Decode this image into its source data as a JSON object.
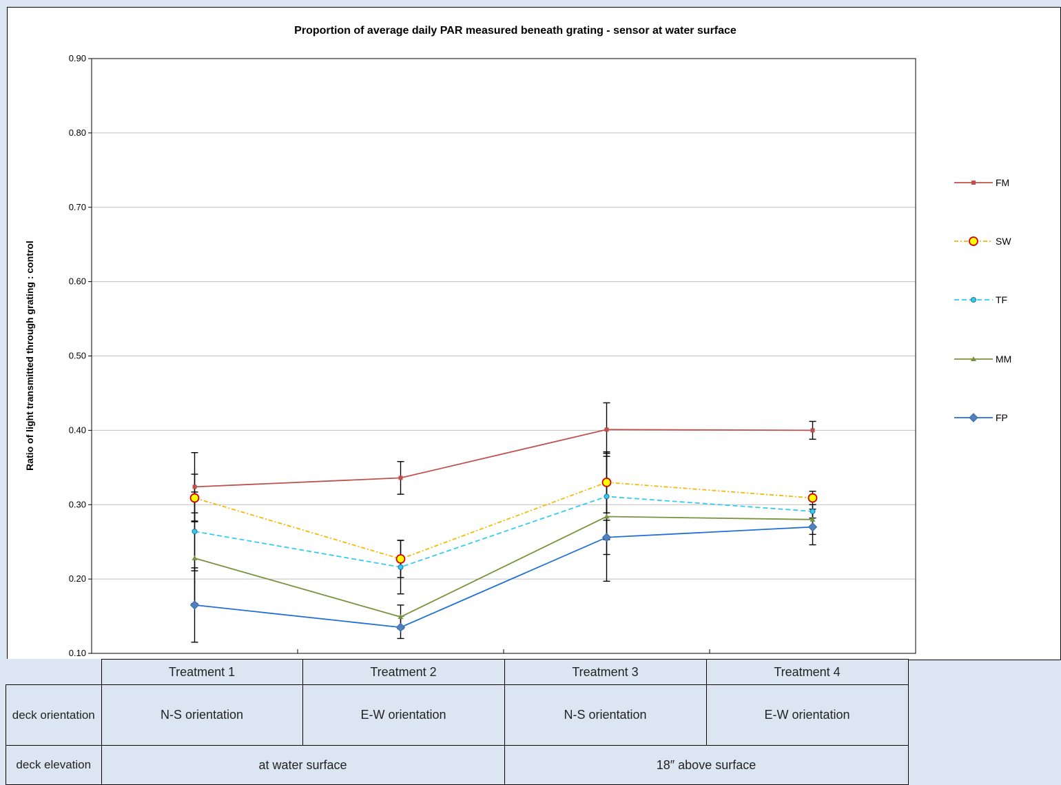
{
  "chart_data": {
    "type": "line",
    "title": "Proportion of average daily PAR measured beneath grating -  sensor at water surface",
    "ylabel": "Ratio of light transmitted through grating : control",
    "xlabel": "",
    "ylim": [
      0.1,
      0.9
    ],
    "yticks": [
      "0.10",
      "0.20",
      "0.30",
      "0.40",
      "0.50",
      "0.60",
      "0.70",
      "0.80",
      "0.90"
    ],
    "categories": [
      "Treatment 1",
      "Treatment 2",
      "Treatment 3",
      "Treatment 4"
    ],
    "grid": true,
    "legend_position": "right",
    "series": [
      {
        "name": "FM",
        "values": [
          0.324,
          0.336,
          0.401,
          0.4
        ],
        "err": [
          0.046,
          0.022,
          0.036,
          0.012
        ],
        "color": "#c0504d",
        "marker": "square",
        "dash": "solid"
      },
      {
        "name": "SW",
        "values": [
          0.309,
          0.227,
          0.33,
          0.309
        ],
        "err": [
          0.032,
          0.025,
          0.041,
          0.009
        ],
        "color": "#f5b800",
        "marker": "circle-large",
        "dash": "dashdot"
      },
      {
        "name": "TF",
        "values": [
          0.264,
          0.216,
          0.311,
          0.291
        ],
        "err": [
          0.053,
          0.036,
          0.058,
          0.009
        ],
        "color": "#33ccee",
        "marker": "circle-small",
        "dash": "dash"
      },
      {
        "name": "MM",
        "values": [
          0.228,
          0.149,
          0.284,
          0.28
        ],
        "err": [
          0.061,
          0.016,
          0.087,
          0.02
        ],
        "color": "#77933c",
        "marker": "triangle",
        "dash": "solid"
      },
      {
        "name": "FP",
        "values": [
          0.165,
          0.135,
          0.256,
          0.27
        ],
        "err": [
          0.05,
          0.015,
          0.023,
          0.024
        ],
        "color": "#1f6fd6",
        "marker": "diamond",
        "dash": "solid"
      }
    ]
  },
  "table": {
    "headers": [
      "Treatment 1",
      "Treatment 2",
      "Treatment 3",
      "Treatment 4"
    ],
    "row1_label": "deck orientation",
    "row1": [
      "N-S orientation",
      "E-W orientation",
      "N-S orientation",
      "E-W orientation"
    ],
    "row2_label": "deck elevation",
    "row2": [
      "at water surface",
      "18″ above surface"
    ]
  }
}
